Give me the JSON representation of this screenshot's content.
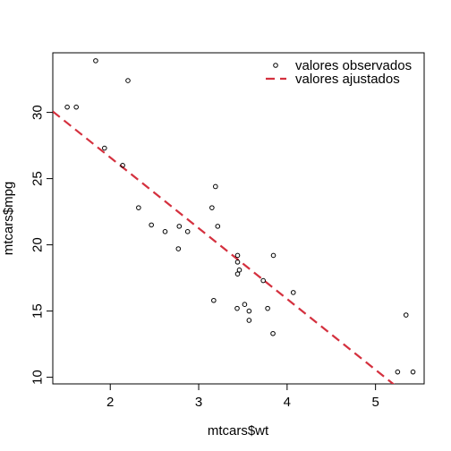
{
  "chart_data": {
    "type": "scatter",
    "title": "",
    "xlabel": "mtcars$wt",
    "ylabel": "mtcars$mpg",
    "xlim": [
      1.35,
      5.55
    ],
    "ylim": [
      9.5,
      34.5
    ],
    "xticks": [
      2,
      3,
      4,
      5
    ],
    "yticks": [
      10,
      15,
      20,
      25,
      30
    ],
    "grid": false,
    "legend_position": "top-right",
    "series": [
      {
        "name": "valores observados",
        "kind": "points",
        "color": "#000000",
        "points": [
          [
            2.62,
            21.0
          ],
          [
            2.875,
            21.0
          ],
          [
            2.32,
            22.8
          ],
          [
            3.215,
            21.4
          ],
          [
            3.44,
            18.7
          ],
          [
            3.46,
            18.1
          ],
          [
            3.57,
            14.3
          ],
          [
            3.19,
            24.4
          ],
          [
            3.15,
            22.8
          ],
          [
            3.44,
            19.2
          ],
          [
            3.44,
            17.8
          ],
          [
            4.07,
            16.4
          ],
          [
            3.73,
            17.3
          ],
          [
            3.78,
            15.2
          ],
          [
            5.25,
            10.4
          ],
          [
            5.424,
            10.4
          ],
          [
            5.345,
            14.7
          ],
          [
            2.2,
            32.4
          ],
          [
            1.615,
            30.4
          ],
          [
            1.835,
            33.9
          ],
          [
            2.465,
            21.5
          ],
          [
            3.52,
            15.5
          ],
          [
            3.435,
            15.2
          ],
          [
            3.84,
            13.3
          ],
          [
            3.845,
            19.2
          ],
          [
            1.935,
            27.3
          ],
          [
            2.14,
            26.0
          ],
          [
            1.513,
            30.4
          ],
          [
            3.17,
            15.8
          ],
          [
            2.77,
            19.7
          ],
          [
            3.57,
            15.0
          ],
          [
            2.78,
            21.4
          ]
        ]
      },
      {
        "name": "valores ajustados",
        "kind": "line",
        "color": "#d4303e",
        "intercept": 37.285,
        "slope": -5.344
      }
    ]
  }
}
